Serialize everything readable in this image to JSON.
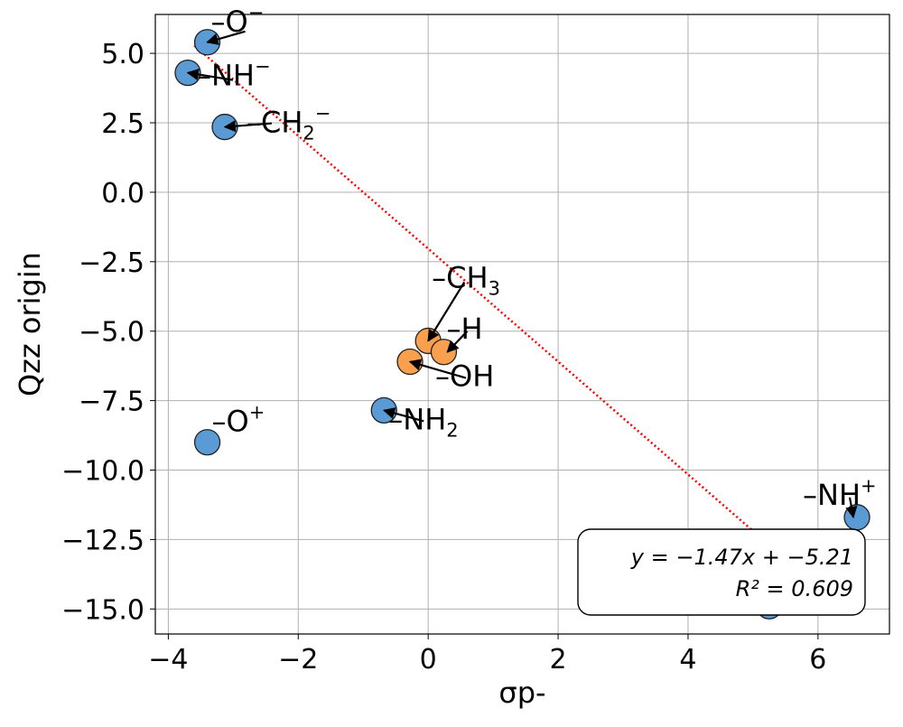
{
  "chart_data": {
    "type": "scatter",
    "title": "",
    "xlabel": "σp-",
    "ylabel": "Qzz origin",
    "xlim": [
      -4.2,
      7.1
    ],
    "ylim": [
      -15.9,
      6.4
    ],
    "x_ticks": [
      {
        "value": -4,
        "label": "−4"
      },
      {
        "value": -2,
        "label": "−2"
      },
      {
        "value": 0,
        "label": "0"
      },
      {
        "value": 2,
        "label": "2"
      },
      {
        "value": 4,
        "label": "4"
      },
      {
        "value": 6,
        "label": "6"
      }
    ],
    "y_ticks": [
      {
        "value": 5.0,
        "label": "5.0"
      },
      {
        "value": 2.5,
        "label": "2.5"
      },
      {
        "value": 0.0,
        "label": "0.0"
      },
      {
        "value": -2.5,
        "label": "−2.5"
      },
      {
        "value": -5.0,
        "label": "−5.0"
      },
      {
        "value": -7.5,
        "label": "−7.5"
      },
      {
        "value": -10.0,
        "label": "−10.0"
      },
      {
        "value": -12.5,
        "label": "−12.5"
      },
      {
        "value": -15.0,
        "label": "−15.0"
      }
    ],
    "grid": true,
    "colors": {
      "blue": "#5b9bd5",
      "orange": "#f9a04f",
      "fit_line": "#ff0000",
      "grid": "#b0b0b0"
    },
    "points": [
      {
        "x": -3.4,
        "y": 5.4,
        "label": "–O",
        "sup": "−",
        "sub": "",
        "color": "blue"
      },
      {
        "x": -3.7,
        "y": 4.3,
        "label": "–NH",
        "sup": "−",
        "sub": "",
        "color": "blue"
      },
      {
        "x": -3.13,
        "y": 2.35,
        "label": "–CH",
        "sub": "2",
        "sup": "−",
        "color": "blue"
      },
      {
        "x": 0.0,
        "y": -5.35,
        "label": "–CH",
        "sub": "3",
        "sup": "",
        "color": "orange"
      },
      {
        "x": 0.24,
        "y": -5.75,
        "label": "–H",
        "sub": "",
        "sup": "",
        "color": "orange"
      },
      {
        "x": -0.28,
        "y": -6.1,
        "label": "–OH",
        "sub": "",
        "sup": "",
        "color": "orange"
      },
      {
        "x": -0.68,
        "y": -7.85,
        "label": "–NH",
        "sub": "2",
        "sup": "",
        "color": "blue"
      },
      {
        "x": -3.4,
        "y": -9.0,
        "label": "–O",
        "sub": "",
        "sup": "+",
        "color": "blue"
      },
      {
        "x": 6.6,
        "y": -11.7,
        "label": "–NH",
        "sub": "",
        "sup": "+",
        "color": "blue"
      },
      {
        "x": 5.25,
        "y": -14.9,
        "label": "",
        "sub": "",
        "sup": "",
        "color": "blue"
      }
    ],
    "fit_line": {
      "slope": -1.47,
      "intercept": -5.21,
      "x_range": [
        -3.6,
        5.3
      ]
    },
    "stats_box": {
      "line1": "y = −1.47x + −5.21",
      "line2": "R² = 0.609"
    }
  }
}
